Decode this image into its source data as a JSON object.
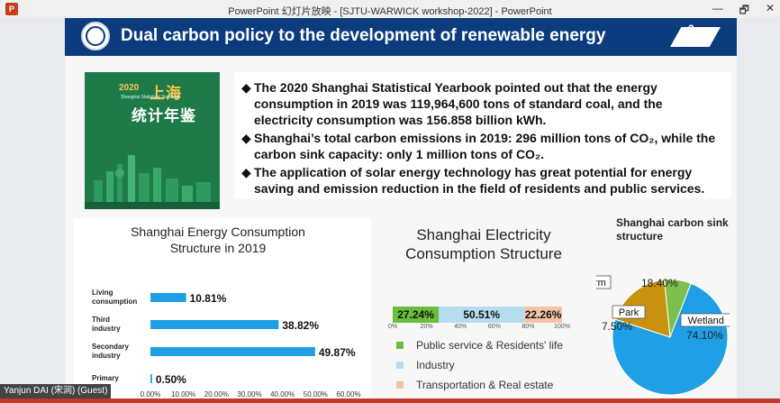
{
  "window": {
    "app_icon": "P",
    "title": "PowerPoint 幻灯片放映 - [SJTU-WARWICK workshop-2022] - PowerPoint",
    "buttons": {
      "minimize": "—",
      "restore": "🗗",
      "close": "✕"
    }
  },
  "slide": {
    "title": "Dual carbon policy to the development of renewable energy",
    "page_number": "2",
    "book": {
      "year": "2020",
      "title_line1": "上海",
      "title_line2": "统计年鉴",
      "subtitle": "Shanghai Statistical Yearbook"
    },
    "bullets": [
      "The 2020 Shanghai Statistical Yearbook pointed out that the energy consumption in 2019 was 119,964,600 tons of standard coal, and the electricity consumption was 156.858 billion kWh.",
      "Shanghai’s total carbon emissions in 2019: 296 million tons of CO₂, while the carbon sink capacity: only 1 million tons of CO₂.",
      "The application of solar energy technology has great potential for energy saving and emission reduction in the field of residents and public services."
    ],
    "bullet_mark": "◆"
  },
  "chart_data": [
    {
      "type": "bar",
      "title": "Shanghai Energy Consumption Structure in 2019",
      "categories": [
        "Living consumption",
        "Third industry",
        "Secondary industry",
        "Primary"
      ],
      "values": [
        10.81,
        38.82,
        49.87,
        0.5
      ],
      "value_labels": [
        "10.81%",
        "38.82%",
        "49.87%",
        "0.50%"
      ],
      "xlim": [
        0,
        60
      ],
      "tick_labels": [
        "0.00%",
        "10.00%",
        "20.00%",
        "30.00%",
        "40.00%",
        "50.00%",
        "60.00%"
      ],
      "color": "#1e9fe6"
    },
    {
      "type": "bar",
      "title": "Shanghai Electricity Consumption Structure",
      "series": [
        {
          "name": "Public service & Residents' life",
          "value": 27.24,
          "label": "27.24%",
          "color": "#6abf3a"
        },
        {
          "name": "Industry",
          "value": 50.51,
          "label": "50.51%",
          "color": "#b5dcef"
        },
        {
          "name": "Transportation & Real estate",
          "value": 22.26,
          "label": "22.26%",
          "color": "#f5c3a8"
        }
      ],
      "tick_labels": [
        "0%",
        "20%",
        "40%",
        "60%",
        "80%",
        "100%"
      ]
    },
    {
      "type": "pie",
      "title": "Shanghai carbon sink structure",
      "slices": [
        {
          "name": "Farm",
          "value": 18.4,
          "label": "18.40%",
          "color": "#c8920e"
        },
        {
          "name": "Park",
          "value": 7.5,
          "label": "7.50%",
          "color": "#7cc04b"
        },
        {
          "name": "Wetland",
          "value": 74.1,
          "label": "74.10%",
          "color": "#1e9fe6"
        }
      ]
    }
  ],
  "status": {
    "participant": "Yanjun DAI (宋润) (Guest)"
  }
}
